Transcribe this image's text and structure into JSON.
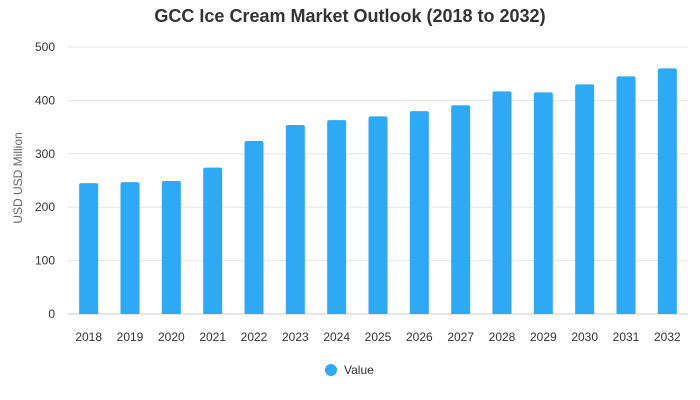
{
  "chart_data": {
    "type": "bar",
    "title": "GCC Ice Cream Market Outlook (2018 to 2032)",
    "xlabel": "",
    "ylabel": "USD USD Million",
    "categories": [
      "2018",
      "2019",
      "2020",
      "2021",
      "2022",
      "2023",
      "2024",
      "2025",
      "2026",
      "2027",
      "2028",
      "2029",
      "2030",
      "2031",
      "2032"
    ],
    "series": [
      {
        "name": "Value",
        "values": [
          245,
          247,
          249,
          274,
          324,
          354,
          363,
          370,
          380,
          391,
          417,
          415,
          430,
          445,
          460
        ]
      }
    ],
    "ylim": [
      0,
      500
    ],
    "yticks": [
      0,
      100,
      200,
      300,
      400,
      500
    ],
    "grid": true,
    "legend": "bottom",
    "colors": {
      "bar": "#2eaaf5",
      "grid": "#e6e6e6",
      "axis": "#cccccc"
    }
  }
}
